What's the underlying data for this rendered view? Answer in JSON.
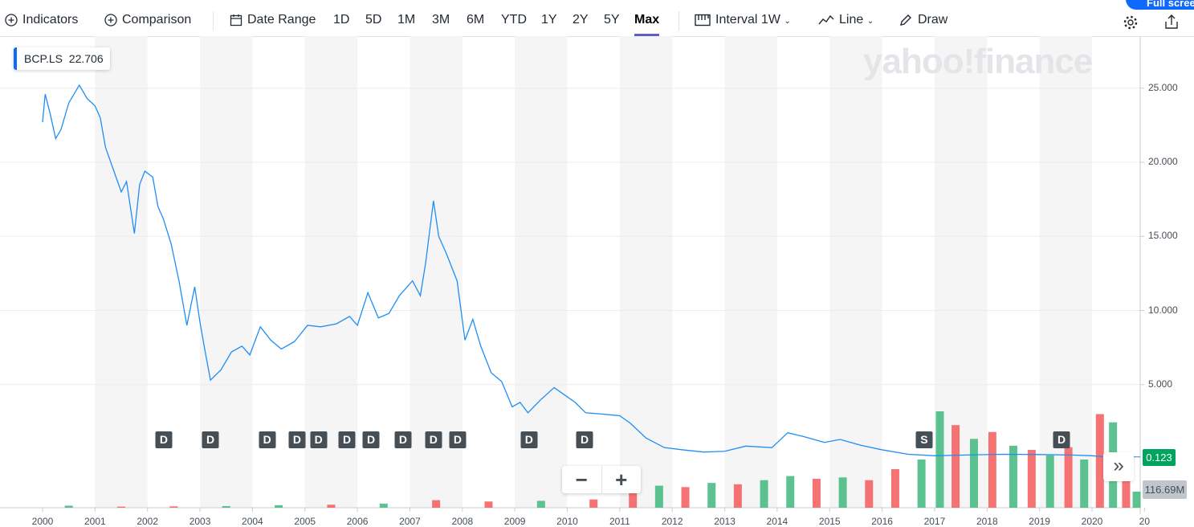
{
  "toolbar": {
    "indicators": "Indicators",
    "comparison": "Comparison",
    "date_range": "Date Range",
    "ranges": [
      "1D",
      "5D",
      "1M",
      "3M",
      "6M",
      "YTD",
      "1Y",
      "2Y",
      "5Y",
      "Max"
    ],
    "selected_range": "Max",
    "interval_label": "Interval",
    "interval_value": "1W",
    "chart_type": "Line",
    "draw": "Draw",
    "full_screen": "Full screen",
    "icons": [
      "plus-circle-icon",
      "calendar-icon",
      "interval-icon",
      "line-chart-icon",
      "pencil-icon",
      "gear-icon",
      "share-icon"
    ]
  },
  "legend": {
    "symbol": "BCP.LS",
    "value": "22.706"
  },
  "watermark": "yahoo!finance",
  "price_tag": "0.123",
  "volume_tag": "116.69M",
  "zoom": {
    "minus": "−",
    "plus": "+"
  },
  "more": "»",
  "colors": {
    "line": "#1e8ef5",
    "up": "#3fb97c",
    "down": "#f45b5b",
    "accent": "#0f69ff",
    "price_tag": "#00a45f"
  },
  "chart_data": {
    "type": "line",
    "ylim": [
      0,
      28
    ],
    "xlim": [
      1999.2,
      2020.95
    ],
    "yticks": [
      "25.000",
      "20.000",
      "15.000",
      "10.000",
      "5.000"
    ],
    "ytick_values": [
      25,
      20,
      15,
      10,
      5
    ],
    "xticks": [
      "2000",
      "2001",
      "2002",
      "2003",
      "2004",
      "2005",
      "2006",
      "2007",
      "2008",
      "2009",
      "2010",
      "2011",
      "2012",
      "2013",
      "2014",
      "2015",
      "2016",
      "2017",
      "2018",
      "2019",
      "2020",
      "20"
    ],
    "grid": true,
    "series": [
      {
        "values": [
          [
            2000.0,
            22.7
          ],
          [
            2000.05,
            24.6
          ],
          [
            2000.15,
            23.2
          ],
          [
            2000.25,
            21.6
          ],
          [
            2000.35,
            22.2
          ],
          [
            2000.5,
            24.0
          ],
          [
            2000.7,
            25.2
          ],
          [
            2000.85,
            24.3
          ],
          [
            2001.0,
            23.8
          ],
          [
            2001.1,
            23.0
          ],
          [
            2001.2,
            21.0
          ],
          [
            2001.35,
            19.5
          ],
          [
            2001.5,
            18.0
          ],
          [
            2001.6,
            18.7
          ],
          [
            2001.75,
            15.2
          ],
          [
            2001.85,
            18.5
          ],
          [
            2001.95,
            19.4
          ],
          [
            2002.1,
            19.0
          ],
          [
            2002.2,
            17.0
          ],
          [
            2002.3,
            16.2
          ],
          [
            2002.45,
            14.5
          ],
          [
            2002.6,
            12.0
          ],
          [
            2002.75,
            9.0
          ],
          [
            2002.9,
            11.6
          ],
          [
            2003.0,
            9.2
          ],
          [
            2003.1,
            7.2
          ],
          [
            2003.2,
            5.3
          ],
          [
            2003.4,
            6.0
          ],
          [
            2003.6,
            7.2
          ],
          [
            2003.8,
            7.6
          ],
          [
            2003.95,
            7.0
          ],
          [
            2004.15,
            8.9
          ],
          [
            2004.35,
            8.0
          ],
          [
            2004.55,
            7.4
          ],
          [
            2004.8,
            7.9
          ],
          [
            2005.05,
            9.0
          ],
          [
            2005.3,
            8.9
          ],
          [
            2005.6,
            9.1
          ],
          [
            2005.85,
            9.6
          ],
          [
            2006.0,
            9.0
          ],
          [
            2006.2,
            11.2
          ],
          [
            2006.4,
            9.5
          ],
          [
            2006.6,
            9.8
          ],
          [
            2006.8,
            11.0
          ],
          [
            2007.05,
            12.0
          ],
          [
            2007.2,
            11.0
          ],
          [
            2007.3,
            13.2
          ],
          [
            2007.45,
            17.4
          ],
          [
            2007.55,
            15.0
          ],
          [
            2007.7,
            13.8
          ],
          [
            2007.9,
            12.0
          ],
          [
            2008.05,
            8.0
          ],
          [
            2008.2,
            9.4
          ],
          [
            2008.35,
            7.6
          ],
          [
            2008.55,
            5.8
          ],
          [
            2008.75,
            5.2
          ],
          [
            2008.95,
            3.5
          ],
          [
            2009.1,
            3.8
          ],
          [
            2009.25,
            3.1
          ],
          [
            2009.5,
            4.0
          ],
          [
            2009.75,
            4.8
          ],
          [
            2009.95,
            4.3
          ],
          [
            2010.15,
            3.8
          ],
          [
            2010.35,
            3.1
          ],
          [
            2010.7,
            3.0
          ],
          [
            2011.0,
            2.9
          ],
          [
            2011.2,
            2.4
          ],
          [
            2011.5,
            1.4
          ],
          [
            2011.85,
            0.75
          ],
          [
            2012.2,
            0.6
          ],
          [
            2012.6,
            0.45
          ],
          [
            2013.0,
            0.5
          ],
          [
            2013.4,
            0.85
          ],
          [
            2013.9,
            0.75
          ],
          [
            2014.2,
            1.75
          ],
          [
            2014.5,
            1.5
          ],
          [
            2014.9,
            1.1
          ],
          [
            2015.2,
            1.3
          ],
          [
            2015.6,
            0.9
          ],
          [
            2016.0,
            0.6
          ],
          [
            2016.5,
            0.3
          ],
          [
            2017.0,
            0.2
          ],
          [
            2017.6,
            0.25
          ],
          [
            2018.3,
            0.3
          ],
          [
            2019.0,
            0.28
          ],
          [
            2019.6,
            0.25
          ],
          [
            2020.0,
            0.2
          ],
          [
            2020.3,
            0.12
          ],
          [
            2020.8,
            0.123
          ]
        ]
      }
    ],
    "volume_millions": [
      [
        2000.5,
        15,
        "up"
      ],
      [
        2001.5,
        8,
        "down"
      ],
      [
        2002.5,
        10,
        "down"
      ],
      [
        2003.5,
        12,
        "up"
      ],
      [
        2004.5,
        18,
        "up"
      ],
      [
        2005.5,
        22,
        "down"
      ],
      [
        2006.5,
        30,
        "up"
      ],
      [
        2007.5,
        55,
        "down"
      ],
      [
        2008.5,
        45,
        "down"
      ],
      [
        2009.5,
        50,
        "up"
      ],
      [
        2010.5,
        60,
        "down"
      ],
      [
        2011.25,
        110,
        "down"
      ],
      [
        2011.75,
        160,
        "up"
      ],
      [
        2012.25,
        150,
        "down"
      ],
      [
        2012.75,
        180,
        "up"
      ],
      [
        2013.25,
        170,
        "down"
      ],
      [
        2013.75,
        200,
        "up"
      ],
      [
        2014.25,
        230,
        "up"
      ],
      [
        2014.75,
        210,
        "down"
      ],
      [
        2015.25,
        220,
        "up"
      ],
      [
        2015.75,
        200,
        "down"
      ],
      [
        2016.25,
        280,
        "down"
      ],
      [
        2016.75,
        350,
        "up"
      ],
      [
        2017.1,
        700,
        "up"
      ],
      [
        2017.4,
        600,
        "down"
      ],
      [
        2017.75,
        500,
        "up"
      ],
      [
        2018.1,
        550,
        "down"
      ],
      [
        2018.5,
        450,
        "up"
      ],
      [
        2018.85,
        420,
        "down"
      ],
      [
        2019.2,
        380,
        "up"
      ],
      [
        2019.55,
        440,
        "down"
      ],
      [
        2019.85,
        350,
        "up"
      ],
      [
        2020.15,
        680,
        "down"
      ],
      [
        2020.4,
        620,
        "up"
      ],
      [
        2020.65,
        380,
        "down"
      ],
      [
        2020.85,
        116.69,
        "up"
      ]
    ],
    "events": [
      {
        "x": 2002.31,
        "label": "D"
      },
      {
        "x": 2003.2,
        "label": "D"
      },
      {
        "x": 2004.28,
        "label": "D"
      },
      {
        "x": 2004.85,
        "label": "D"
      },
      {
        "x": 2005.26,
        "label": "D"
      },
      {
        "x": 2005.8,
        "label": "D"
      },
      {
        "x": 2006.26,
        "label": "D"
      },
      {
        "x": 2006.87,
        "label": "D"
      },
      {
        "x": 2007.45,
        "label": "D"
      },
      {
        "x": 2007.91,
        "label": "D"
      },
      {
        "x": 2009.27,
        "label": "D"
      },
      {
        "x": 2010.33,
        "label": "D"
      },
      {
        "x": 2016.8,
        "label": "S"
      },
      {
        "x": 2019.42,
        "label": "D"
      }
    ]
  }
}
